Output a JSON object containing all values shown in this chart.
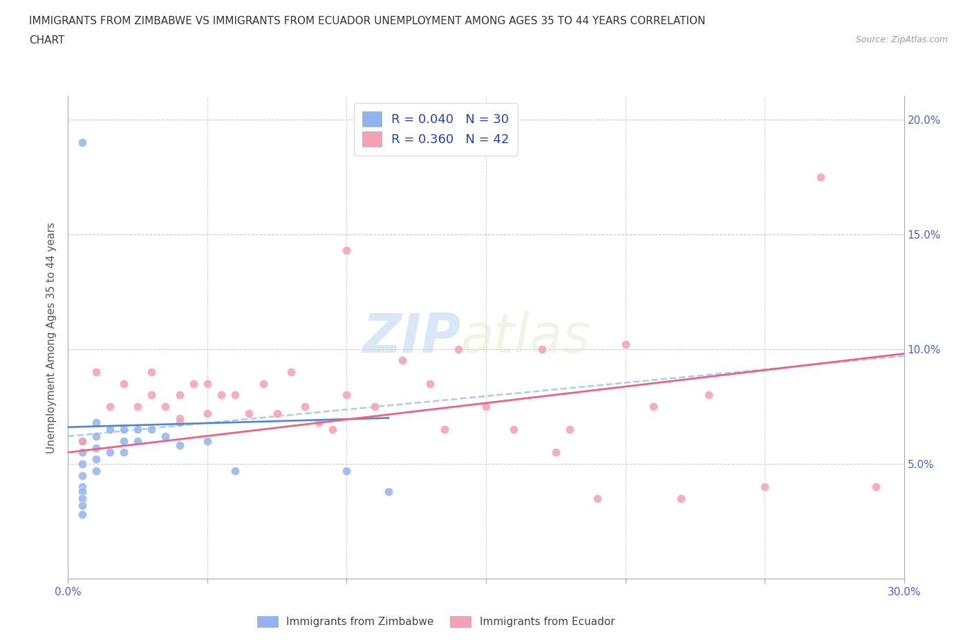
{
  "title_line1": "IMMIGRANTS FROM ZIMBABWE VS IMMIGRANTS FROM ECUADOR UNEMPLOYMENT AMONG AGES 35 TO 44 YEARS CORRELATION",
  "title_line2": "CHART",
  "source_text": "Source: ZipAtlas.com",
  "ylabel": "Unemployment Among Ages 35 to 44 years",
  "xlim": [
    0.0,
    0.3
  ],
  "ylim": [
    0.0,
    0.21
  ],
  "x_ticks": [
    0.0,
    0.05,
    0.1,
    0.15,
    0.2,
    0.25,
    0.3
  ],
  "y_ticks": [
    0.0,
    0.05,
    0.1,
    0.15,
    0.2
  ],
  "zimbabwe_color": "#92b4ec",
  "ecuador_color": "#f4a0b5",
  "zimbabwe_line_color": "#5588cc",
  "ecuador_line_color": "#f06080",
  "trend_dashed_color": "#aaccee",
  "R_zimbabwe": 0.04,
  "N_zimbabwe": 30,
  "R_ecuador": 0.36,
  "N_ecuador": 42,
  "watermark_zip": "ZIP",
  "watermark_atlas": "atlas",
  "zimbabwe_x": [
    0.005,
    0.005,
    0.005,
    0.005,
    0.005,
    0.005,
    0.005,
    0.005,
    0.005,
    0.005,
    0.01,
    0.01,
    0.01,
    0.01,
    0.01,
    0.015,
    0.015,
    0.02,
    0.02,
    0.02,
    0.025,
    0.025,
    0.03,
    0.035,
    0.04,
    0.04,
    0.05,
    0.06,
    0.1,
    0.115
  ],
  "zimbabwe_y": [
    0.19,
    0.06,
    0.055,
    0.05,
    0.045,
    0.04,
    0.038,
    0.035,
    0.032,
    0.028,
    0.068,
    0.062,
    0.057,
    0.052,
    0.047,
    0.065,
    0.055,
    0.065,
    0.06,
    0.055,
    0.065,
    0.06,
    0.065,
    0.062,
    0.068,
    0.058,
    0.06,
    0.047,
    0.047,
    0.038
  ],
  "ecuador_x": [
    0.005,
    0.01,
    0.015,
    0.02,
    0.025,
    0.03,
    0.03,
    0.035,
    0.04,
    0.04,
    0.045,
    0.05,
    0.05,
    0.055,
    0.06,
    0.065,
    0.07,
    0.075,
    0.08,
    0.085,
    0.09,
    0.095,
    0.1,
    0.1,
    0.11,
    0.12,
    0.13,
    0.135,
    0.14,
    0.15,
    0.16,
    0.17,
    0.175,
    0.18,
    0.19,
    0.2,
    0.21,
    0.22,
    0.23,
    0.25,
    0.27,
    0.29
  ],
  "ecuador_y": [
    0.06,
    0.09,
    0.075,
    0.085,
    0.075,
    0.09,
    0.08,
    0.075,
    0.08,
    0.07,
    0.085,
    0.085,
    0.072,
    0.08,
    0.08,
    0.072,
    0.085,
    0.072,
    0.09,
    0.075,
    0.068,
    0.065,
    0.143,
    0.08,
    0.075,
    0.095,
    0.085,
    0.065,
    0.1,
    0.075,
    0.065,
    0.1,
    0.055,
    0.065,
    0.035,
    0.102,
    0.075,
    0.035,
    0.08,
    0.04,
    0.175,
    0.04
  ],
  "zim_line_x0": 0.0,
  "zim_line_x1": 0.115,
  "zim_line_y0": 0.066,
  "zim_line_y1": 0.07,
  "ecu_line_x0": 0.0,
  "ecu_line_x1": 0.3,
  "ecu_line_y0": 0.055,
  "ecu_line_y1": 0.098,
  "dash_line_x0": 0.0,
  "dash_line_x1": 0.3,
  "dash_line_y0": 0.062,
  "dash_line_y1": 0.097
}
